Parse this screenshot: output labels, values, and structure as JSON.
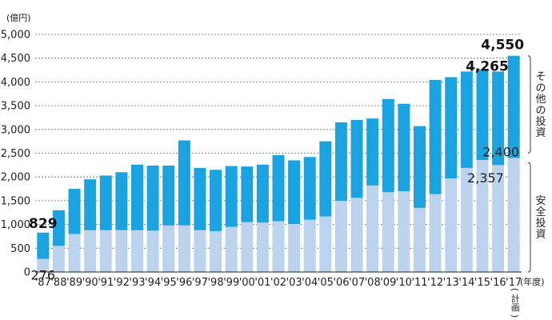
{
  "chart_data": {
    "type": "bar",
    "stacked": true,
    "y_unit_label": "(億円)",
    "x_unit_label": "(年度)",
    "ylim": [
      0,
      5000
    ],
    "yticks": [
      "0",
      "500",
      "1,000",
      "1,500",
      "2,000",
      "2,500",
      "3,000",
      "3,500",
      "4,000",
      "4,500",
      "5,000"
    ],
    "grid": "horizontal dashed",
    "categories": [
      "'87",
      "'88",
      "'89",
      "'90",
      "'91",
      "'92",
      "'93",
      "'94",
      "'95",
      "'96",
      "'97",
      "'98",
      "'99",
      "'00",
      "'01",
      "'02",
      "'03",
      "'04",
      "'05",
      "'06",
      "'07",
      "'08",
      "'09",
      "'10",
      "'11",
      "'12",
      "'13",
      "'14",
      "'15",
      "'16",
      "'17"
    ],
    "last_category_note": "(計画)",
    "totals": [
      829,
      1300,
      1750,
      1950,
      2030,
      2100,
      2260,
      2240,
      2240,
      2770,
      2190,
      2150,
      2230,
      2220,
      2260,
      2460,
      2350,
      2420,
      2750,
      3150,
      3200,
      3230,
      3640,
      3540,
      3070,
      4040,
      4100,
      4220,
      4265,
      4220,
      4550
    ],
    "series": [
      {
        "name": "安全投資",
        "color": "#bcd3ee",
        "values": [
          276,
          550,
          800,
          880,
          880,
          880,
          880,
          870,
          980,
          980,
          880,
          860,
          950,
          1050,
          1040,
          1070,
          1010,
          1100,
          1170,
          1500,
          1560,
          1820,
          1680,
          1700,
          1350,
          1640,
          1970,
          2190,
          2357,
          2250,
          2400
        ]
      },
      {
        "name": "その他の投資",
        "color": "#1aa3e0",
        "values": [
          553,
          750,
          950,
          1070,
          1150,
          1220,
          1380,
          1370,
          1260,
          1790,
          1310,
          1290,
          1280,
          1170,
          1220,
          1390,
          1340,
          1320,
          1580,
          1650,
          1640,
          1410,
          1960,
          1840,
          1720,
          2400,
          2130,
          2030,
          1908,
          1970,
          2150
        ]
      }
    ],
    "annotations": [
      {
        "text": "829",
        "index": 0,
        "value": 829,
        "style": "bold"
      },
      {
        "text": "276",
        "index": 0,
        "value": 276,
        "style": "normal"
      },
      {
        "text": "4,265",
        "index": 28,
        "value": 4265,
        "style": "bold"
      },
      {
        "text": "2,357",
        "index": 28,
        "value": 2357,
        "style": "normal"
      },
      {
        "text": "4,550",
        "index": 30,
        "value": 4550,
        "style": "bold"
      },
      {
        "text": "2,400",
        "index": 30,
        "value": 2400,
        "style": "normal"
      }
    ],
    "bracket_labels": [
      {
        "text": "その他の投資",
        "range": [
          2400,
          4550
        ]
      },
      {
        "text": "安全投資",
        "range": [
          0,
          2400
        ]
      }
    ]
  }
}
